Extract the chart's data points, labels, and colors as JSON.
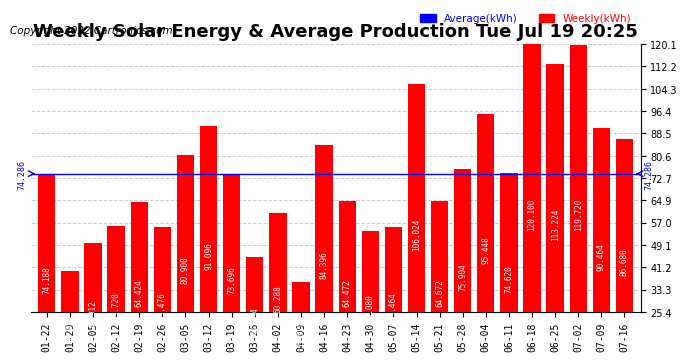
{
  "title": "Weekly Solar Energy & Average Production Tue Jul 19 20:25",
  "copyright": "Copyright 2022 Cartronics.com",
  "categories": [
    "01-22",
    "01-29",
    "02-05",
    "02-12",
    "02-19",
    "02-26",
    "03-05",
    "03-12",
    "03-19",
    "03-26",
    "04-02",
    "04-09",
    "04-16",
    "04-23",
    "04-30",
    "05-07",
    "05-14",
    "05-21",
    "05-28",
    "06-04",
    "06-11",
    "06-18",
    "06-25",
    "07-02",
    "07-09",
    "07-16"
  ],
  "values": [
    74.188,
    39.992,
    49.912,
    55.72,
    64.424,
    55.476,
    80.9,
    91.096,
    73.696,
    44.864,
    60.288,
    35.92,
    84.396,
    64.472,
    54.08,
    55.464,
    106.024,
    64.672,
    75.904,
    95.448,
    74.62,
    120.1,
    113.224,
    119.72,
    90.464,
    86.68
  ],
  "average": 74.286,
  "bar_color": "#ff0000",
  "avg_line_color": "#0000ff",
  "avg_label_color": "#0000ff",
  "weekly_label_color": "#ff0000",
  "legend_avg": "Average(kWh)",
  "legend_weekly": "Weekly(kWh)",
  "yticks": [
    25.4,
    33.3,
    41.2,
    49.1,
    57.0,
    64.9,
    72.7,
    80.6,
    88.5,
    96.4,
    104.3,
    112.2,
    120.1
  ],
  "ylim": [
    25.4,
    120.1
  ],
  "bg_color": "#ffffff",
  "grid_color": "#cccccc",
  "bar_value_color": "#ffffff",
  "title_fontsize": 13,
  "copyright_fontsize": 7.5,
  "tick_fontsize": 7,
  "bar_label_fontsize": 5.5
}
